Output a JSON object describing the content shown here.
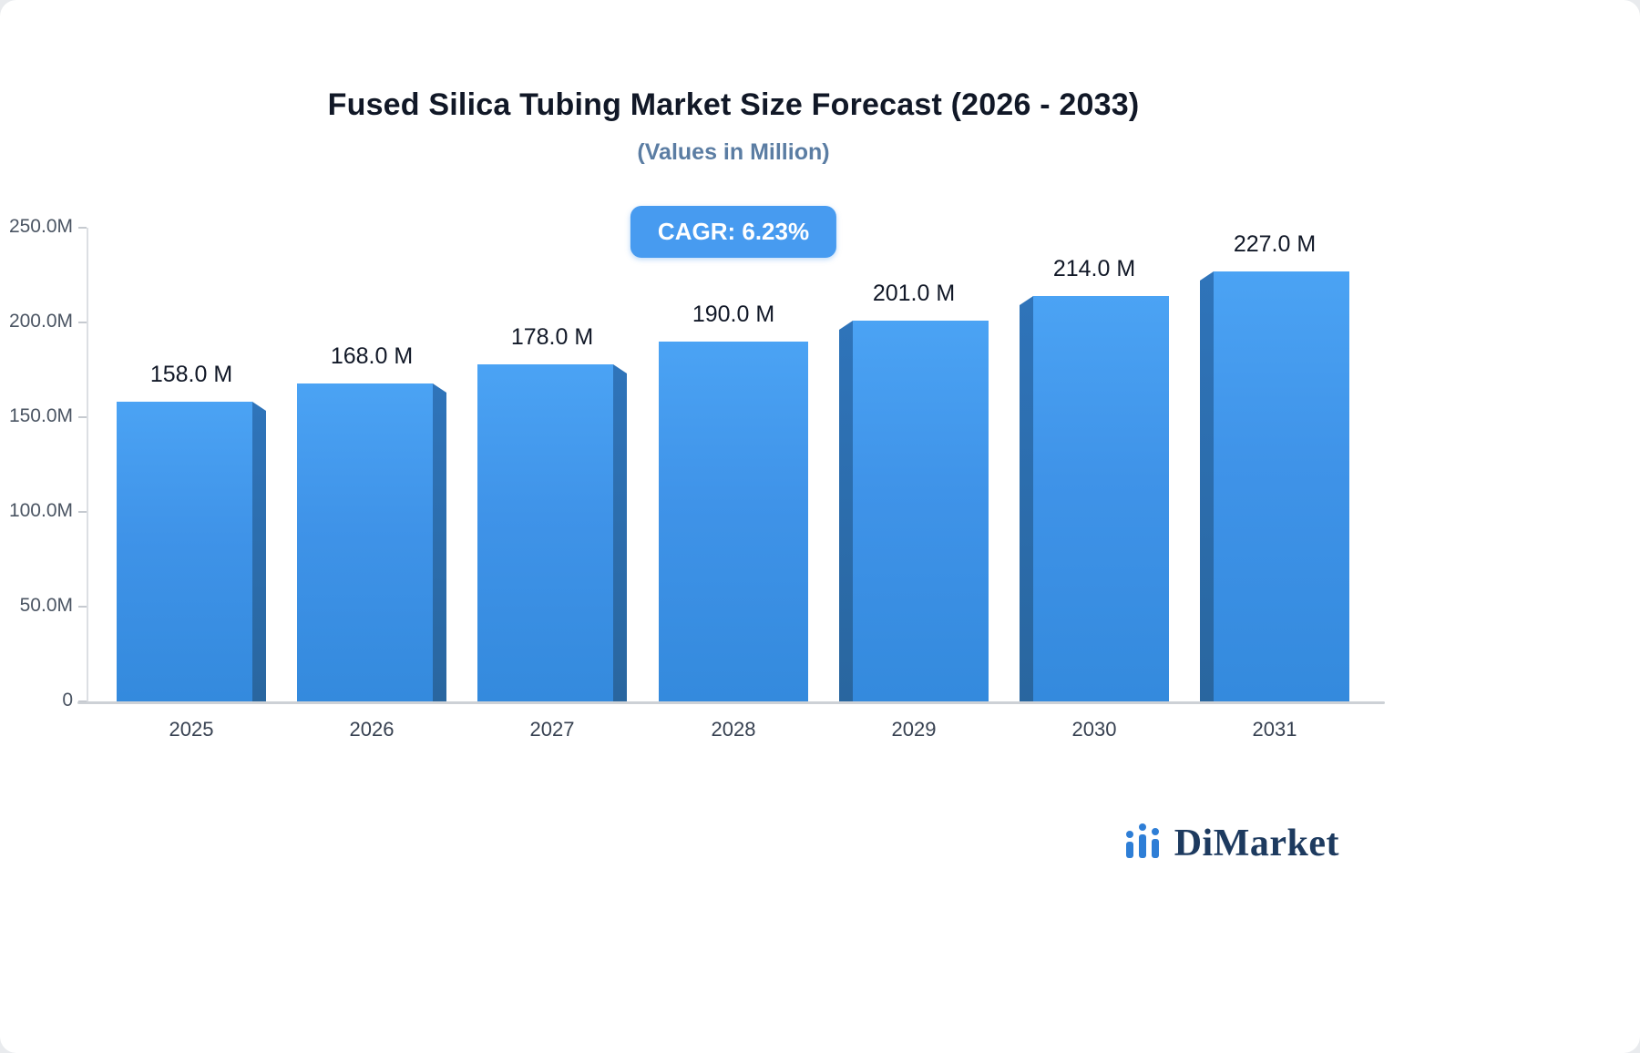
{
  "header": {
    "title": "Fused Silica Tubing Market Size Forecast (2026 - 2033)",
    "subtitle": "(Values in Million)"
  },
  "badge": {
    "label": "CAGR: 6.23%"
  },
  "chart_data": {
    "type": "bar",
    "title": "Fused Silica Tubing Market Size Forecast (2026 - 2033)",
    "subtitle": "(Values in Million)",
    "categories": [
      "2025",
      "2026",
      "2027",
      "2028",
      "2029",
      "2030",
      "2031"
    ],
    "values": [
      158,
      168,
      178,
      190,
      201,
      214,
      227
    ],
    "value_labels": [
      "158.0 M",
      "168.0 M",
      "178.0 M",
      "190.0 M",
      "201.0 M",
      "214.0 M",
      "227.0 M"
    ],
    "xlabel": "",
    "ylabel": "",
    "ylim": [
      0,
      250
    ],
    "yticks": [
      0,
      50,
      100,
      150,
      200,
      250
    ],
    "ytick_labels": [
      "0",
      "50.0M",
      "100.0M",
      "150.0M",
      "200.0M",
      "250.0M"
    ],
    "grid": false,
    "legend": false,
    "bar_color": "#3f93e8",
    "bar_side_color": "#2c6dac",
    "effect": "pseudo-3d side facets angled toward center"
  },
  "logo": {
    "text": "DiMarket",
    "icon": "bar-chart-logo-icon",
    "icon_color": "#2e7ed6",
    "text_color": "#1d3a5f"
  }
}
